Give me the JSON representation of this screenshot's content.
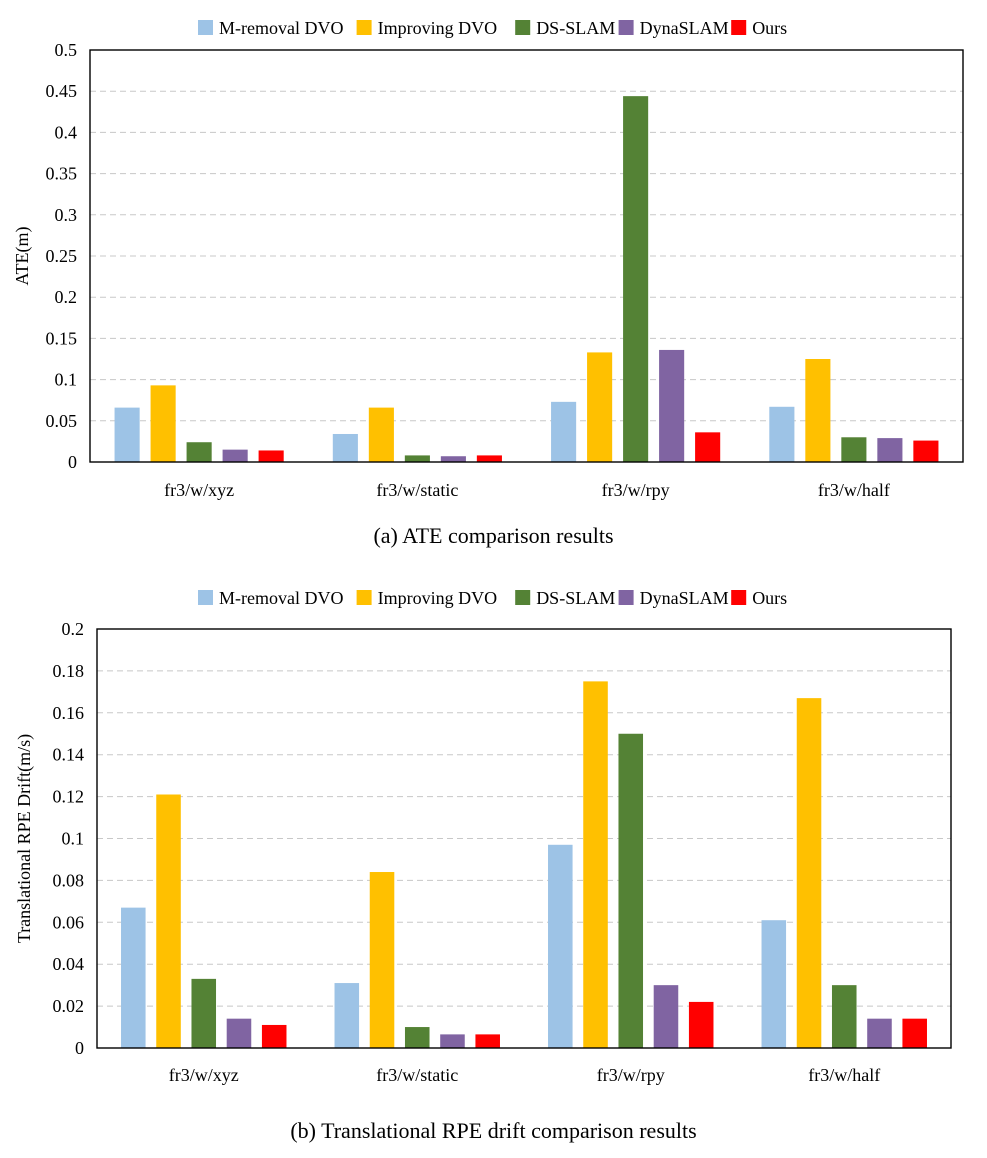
{
  "chart_data": [
    {
      "type": "bar",
      "title": "",
      "caption": "(a)  ATE comparison results",
      "xlabel": "",
      "ylabel": "ATE(m)",
      "ylim": [
        0,
        0.5
      ],
      "yticks": [
        0,
        0.05,
        0.1,
        0.15,
        0.2,
        0.25,
        0.3,
        0.35,
        0.4,
        0.45,
        0.5
      ],
      "ytick_labels": [
        "0",
        "0.05",
        "0.1",
        "0.15",
        "0.2",
        "0.25",
        "0.3",
        "0.35",
        "0.4",
        "0.45",
        "0.5"
      ],
      "grid": true,
      "legend_position": "top-center",
      "categories": [
        "fr3/w/xyz",
        "fr3/w/static",
        "fr3/w/rpy",
        "fr3/w/half"
      ],
      "series": [
        {
          "name": "M-removal DVO",
          "color": "#9dc3e6",
          "values": [
            0.066,
            0.034,
            0.073,
            0.067
          ]
        },
        {
          "name": "Improving DVO",
          "color": "#ffc000",
          "values": [
            0.093,
            0.066,
            0.133,
            0.125
          ]
        },
        {
          "name": "DS-SLAM",
          "color": "#548235",
          "values": [
            0.024,
            0.008,
            0.444,
            0.03
          ]
        },
        {
          "name": "DynaSLAM",
          "color": "#8064a2",
          "values": [
            0.015,
            0.007,
            0.136,
            0.029
          ]
        },
        {
          "name": "Ours",
          "color": "#ff0000",
          "values": [
            0.014,
            0.008,
            0.036,
            0.026
          ]
        }
      ]
    },
    {
      "type": "bar",
      "title": "",
      "caption": "(b) Translational RPE drift comparison results",
      "xlabel": "",
      "ylabel": "Translational RPE Drift(m/s)",
      "ylim": [
        0,
        0.2
      ],
      "yticks": [
        0,
        0.02,
        0.04,
        0.06,
        0.08,
        0.1,
        0.12,
        0.14,
        0.16,
        0.18,
        0.2
      ],
      "ytick_labels": [
        "0",
        "0.02",
        "0.04",
        "0.06",
        "0.08",
        "0.1",
        "0.12",
        "0.14",
        "0.16",
        "0.18",
        "0.2"
      ],
      "grid": true,
      "legend_position": "top-center",
      "categories": [
        "fr3/w/xyz",
        "fr3/w/static",
        "fr3/w/rpy",
        "fr3/w/half"
      ],
      "series": [
        {
          "name": "M-removal DVO",
          "color": "#9dc3e6",
          "values": [
            0.067,
            0.031,
            0.097,
            0.061
          ]
        },
        {
          "name": "Improving DVO",
          "color": "#ffc000",
          "values": [
            0.121,
            0.084,
            0.175,
            0.167
          ]
        },
        {
          "name": "DS-SLAM",
          "color": "#548235",
          "values": [
            0.033,
            0.01,
            0.15,
            0.03
          ]
        },
        {
          "name": "DynaSLAM",
          "color": "#8064a2",
          "values": [
            0.014,
            0.0065,
            0.03,
            0.014
          ]
        },
        {
          "name": "Ours",
          "color": "#ff0000",
          "values": [
            0.011,
            0.0065,
            0.022,
            0.014
          ]
        }
      ]
    }
  ]
}
